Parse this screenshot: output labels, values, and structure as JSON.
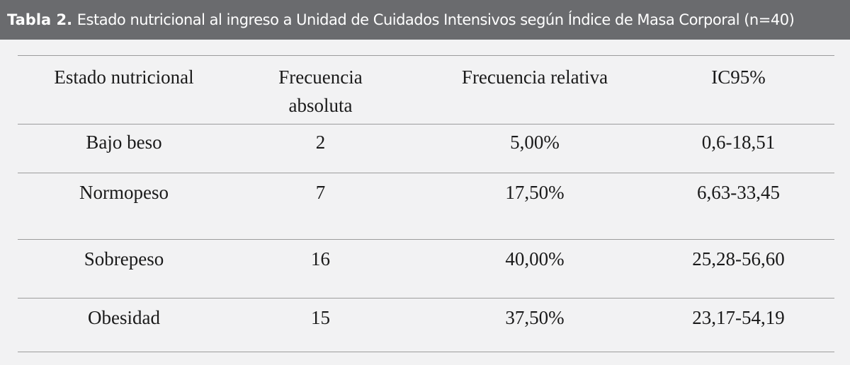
{
  "caption": {
    "label": "Tabla 2.",
    "text": "Estado nutricional al ingreso a Unidad de Cuidados Intensivos según Índice de Masa Corporal (n=40)"
  },
  "table": {
    "headers": {
      "estado": "Estado nutricional",
      "frecuencia_absoluta_line1": "Frecuencia",
      "frecuencia_absoluta_line2": "absoluta",
      "frecuencia_relativa": "Frecuencia relativa",
      "ic95": "IC95%"
    },
    "rows": [
      {
        "estado": "Bajo beso",
        "absoluta": "2",
        "relativa": "5,00%",
        "ic95": "0,6-18,51"
      },
      {
        "estado": "Normopeso",
        "absoluta": "7",
        "relativa": "17,50%",
        "ic95": "6,63-33,45"
      },
      {
        "estado": "Sobrepeso",
        "absoluta": "16",
        "relativa": "40,00%",
        "ic95": "25,28-56,60"
      },
      {
        "estado": "Obesidad",
        "absoluta": "15",
        "relativa": "37,50%",
        "ic95": "23,17-54,19"
      }
    ]
  },
  "colors": {
    "caption_background": "#6a6b6e",
    "page_background": "#f2f2f3",
    "rule": "#9c9c9c"
  }
}
